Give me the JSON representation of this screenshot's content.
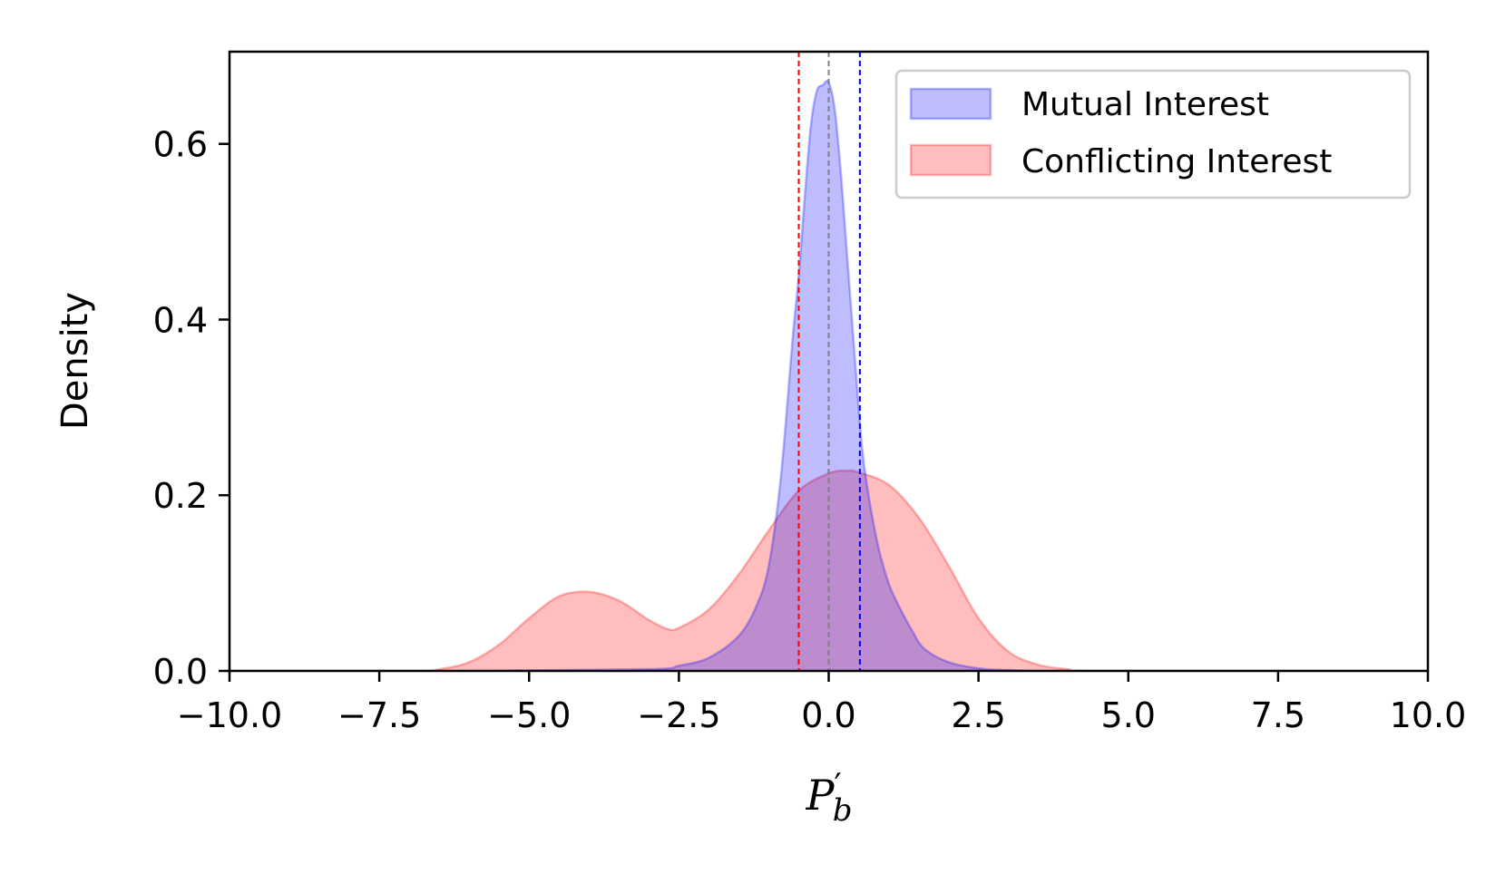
{
  "chart_data": {
    "type": "area",
    "xlabel": {
      "base": "P",
      "prime": "′",
      "sub": "b"
    },
    "ylabel": "Density",
    "xlim": [
      -10,
      10
    ],
    "ylim": [
      0,
      0.705
    ],
    "xticks": [
      -10,
      -7.5,
      -5,
      -2.5,
      0,
      2.5,
      5,
      7.5,
      10
    ],
    "xtick_labels": [
      "−10.0",
      "−7.5",
      "−5.0",
      "−2.5",
      "0.0",
      "2.5",
      "5.0",
      "7.5",
      "10.0"
    ],
    "yticks": [
      0,
      0.2,
      0.4,
      0.6
    ],
    "ytick_labels": [
      "0.0",
      "0.2",
      "0.4",
      "0.6"
    ],
    "grid": false,
    "legend_position": "top-right",
    "series": [
      {
        "name": "Mutual Interest",
        "color": "#0000ff",
        "x": [
          -10,
          -6,
          -3,
          -2.5,
          -2,
          -1.5,
          -1.2,
          -1,
          -0.8,
          -0.6,
          -0.5,
          -0.4,
          -0.3,
          -0.2,
          -0.1,
          0,
          0.1,
          0.2,
          0.3,
          0.4,
          0.5,
          0.6,
          0.8,
          1,
          1.2,
          1.4,
          1.6,
          2,
          2.5,
          3,
          4,
          10
        ],
        "y": [
          0,
          0,
          0.002,
          0.006,
          0.015,
          0.04,
          0.075,
          0.12,
          0.22,
          0.38,
          0.45,
          0.54,
          0.62,
          0.66,
          0.667,
          0.67,
          0.64,
          0.57,
          0.48,
          0.39,
          0.3,
          0.23,
          0.15,
          0.1,
          0.07,
          0.045,
          0.025,
          0.01,
          0.003,
          0.001,
          0,
          0
        ],
        "mean_line": 0.52
      },
      {
        "name": "Conflicting Interest",
        "color": "#ff0000",
        "x": [
          -10,
          -7,
          -6.5,
          -6,
          -5.5,
          -5,
          -4.5,
          -4,
          -3.5,
          -3,
          -2.7,
          -2.5,
          -2,
          -1.5,
          -1,
          -0.5,
          0,
          0.3,
          0.5,
          1,
          1.5,
          2,
          2.5,
          3,
          3.5,
          4,
          4.5,
          10
        ],
        "y": [
          0,
          0,
          0.002,
          0.01,
          0.03,
          0.06,
          0.085,
          0.09,
          0.08,
          0.058,
          0.048,
          0.049,
          0.07,
          0.11,
          0.16,
          0.205,
          0.225,
          0.228,
          0.226,
          0.212,
          0.175,
          0.12,
          0.06,
          0.022,
          0.007,
          0.002,
          0,
          0
        ],
        "mean_line": -0.5
      }
    ],
    "reference_line": {
      "x": 0,
      "color": "#808080"
    }
  }
}
